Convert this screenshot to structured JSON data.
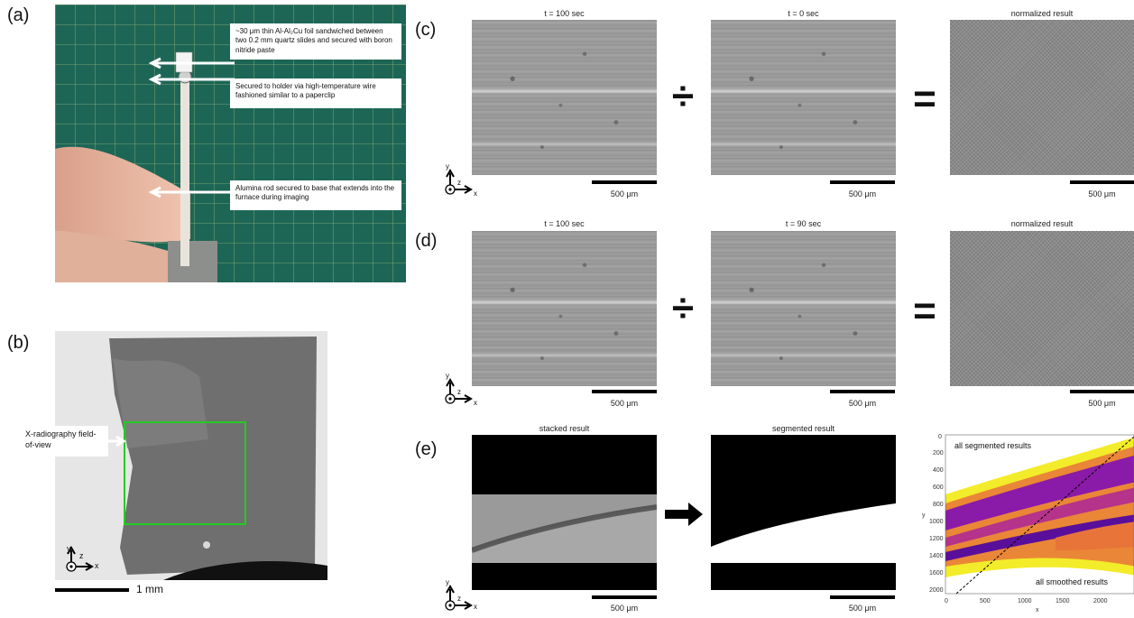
{
  "panel_labels": {
    "a": "(a)",
    "b": "(b)",
    "c": "(c)",
    "d": "(d)",
    "e": "(e)"
  },
  "panel_a": {
    "annotations": [
      "~30 μm thin Al-Al₂Cu foil sandwiched between two 0.2 mm quartz slides and secured with boron nitride paste",
      "Secured to holder via high-temperature wire fashioned similar to a paperclip",
      "Alumina rod secured to base that extends into the furnace during imaging"
    ]
  },
  "panel_b": {
    "fov_label": "X-radiography field-of-view",
    "scale_label": "1 mm",
    "axis_y": "y",
    "axis_z": "z",
    "axis_x": "x"
  },
  "panel_c": {
    "titles": [
      "t = 100 sec",
      "t = 0 sec",
      "normalized result"
    ],
    "scale_label": "500 μm",
    "divide": "÷",
    "equals": "="
  },
  "panel_d": {
    "titles": [
      "t = 100 sec",
      "t = 90 sec",
      "normalized result"
    ],
    "scale_label": "500 μm",
    "divide": "÷",
    "equals": "="
  },
  "panel_e": {
    "titles": [
      "stacked result",
      "segmented result"
    ],
    "scale_label": "500 μm",
    "plot": {
      "label_top": "all segmented results",
      "label_bottom": "all smoothed results",
      "xlabel": "x",
      "ylabel": "y",
      "xticks": [
        "0",
        "500",
        "1000",
        "1500",
        "2000"
      ],
      "yticks": [
        "0",
        "200",
        "400",
        "600",
        "800",
        "1000",
        "1200",
        "1400",
        "1600",
        "2000"
      ]
    }
  },
  "axes": {
    "y": "y",
    "z": "z",
    "x": "x"
  },
  "colors": {
    "fov_box": "#22cc22",
    "mat_green": "#1f6b5a",
    "plasma_purple": "#8a1aa8",
    "plasma_yellow": "#f3ec2a",
    "plasma_orange": "#e8743a"
  }
}
